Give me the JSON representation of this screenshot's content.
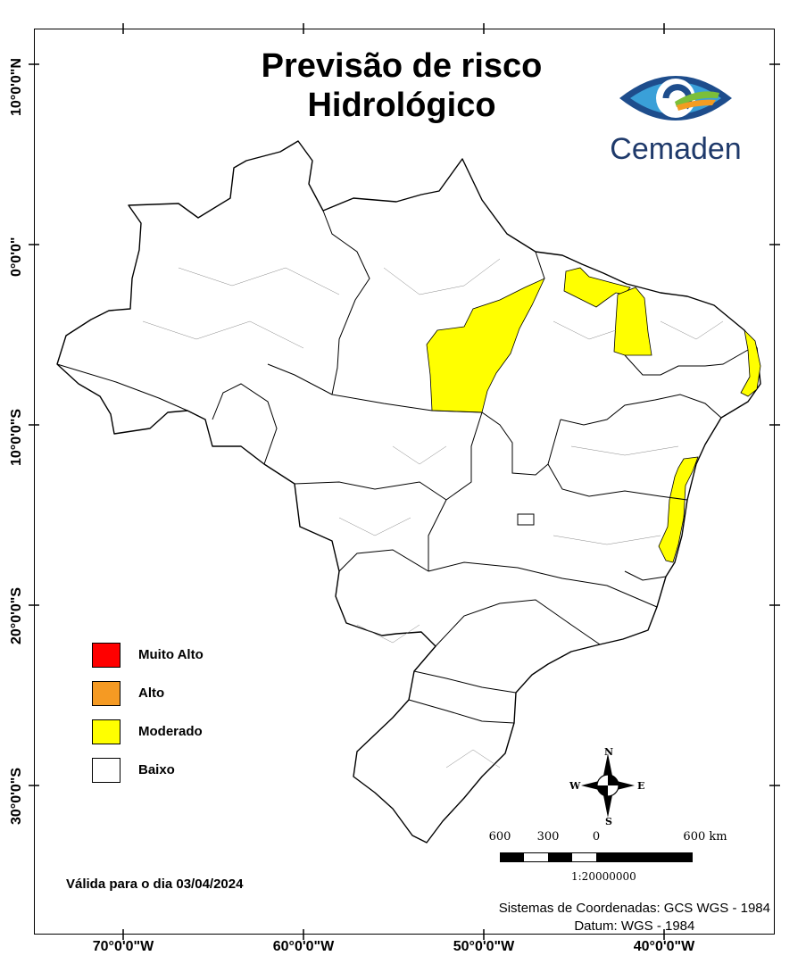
{
  "title_line1": "Previsão de risco",
  "title_line2": "Hidrológico",
  "logo_text": "Cemaden",
  "legend": [
    {
      "label": "Muito Alto",
      "color": "#ff0000"
    },
    {
      "label": "Alto",
      "color": "#f59a23"
    },
    {
      "label": "Moderado",
      "color": "#ffff00"
    },
    {
      "label": "Baixo",
      "color": "#ffffff"
    }
  ],
  "valid_date": "Válida para o dia 03/04/2024",
  "coord_system": "Sistemas de Coordenadas: GCS WGS - 1984",
  "datum": "Datum: WGS - 1984",
  "scale": {
    "labels": [
      "600",
      "300",
      "0",
      "600 km"
    ],
    "ratio": "1:20000000"
  },
  "compass": {
    "n": "N",
    "s": "S",
    "e": "E",
    "w": "W"
  },
  "lat_labels": [
    "10°0'0\"N",
    "0°0'0\"",
    "10°0'0\"S",
    "20°0'0\"S",
    "30°0'0\"S"
  ],
  "lon_labels": [
    "70°0'0\"W",
    "60°0'0\"W",
    "50°0'0\"W",
    "40°0'0\"W"
  ]
}
